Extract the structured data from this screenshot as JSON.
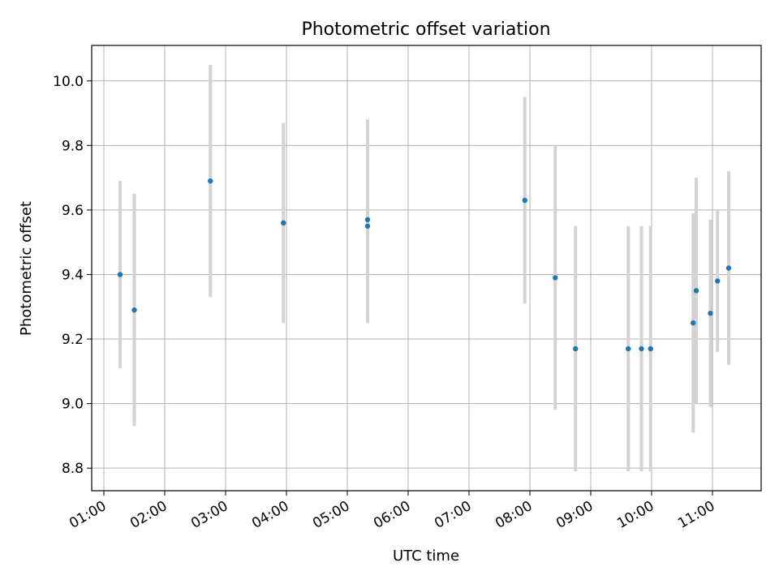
{
  "chart_data": {
    "type": "scatter",
    "title": "Photometric offset variation",
    "xlabel": "UTC time",
    "ylabel": "Photometric offset",
    "x_tick_labels": [
      "01:00",
      "02:00",
      "03:00",
      "04:00",
      "05:00",
      "06:00",
      "07:00",
      "08:00",
      "09:00",
      "10:00",
      "11:00"
    ],
    "y_tick_labels": [
      "8.8",
      "9.0",
      "9.2",
      "9.4",
      "9.6",
      "9.8",
      "10.0"
    ],
    "xlim": [
      "00:48",
      "11:48"
    ],
    "ylim": [
      8.73,
      10.11
    ],
    "grid": true,
    "colors": {
      "points": "#1f77b4",
      "error_bars": "#d3d3d3",
      "grid": "#b0b0b0"
    },
    "series": [
      {
        "points": [
          {
            "x": "01:16",
            "y": 9.4,
            "err": 0.29
          },
          {
            "x": "01:30",
            "y": 9.29,
            "err": 0.36
          },
          {
            "x": "02:45",
            "y": 9.69,
            "err": 0.36
          },
          {
            "x": "03:57",
            "y": 9.56,
            "err": 0.31
          },
          {
            "x": "05:20",
            "y": 9.57,
            "err": 0.31
          },
          {
            "x": "05:20",
            "y": 9.55,
            "err": 0.3
          },
          {
            "x": "07:55",
            "y": 9.63,
            "err": 0.32
          },
          {
            "x": "08:25",
            "y": 9.39,
            "err": 0.41
          },
          {
            "x": "08:45",
            "y": 9.17,
            "err": 0.38
          },
          {
            "x": "09:37",
            "y": 9.17,
            "err": 0.38
          },
          {
            "x": "09:50",
            "y": 9.17,
            "err": 0.38
          },
          {
            "x": "09:59",
            "y": 9.17,
            "err": 0.38
          },
          {
            "x": "10:41",
            "y": 9.25,
            "err": 0.34
          },
          {
            "x": "10:44",
            "y": 9.35,
            "err": 0.35
          },
          {
            "x": "10:58",
            "y": 9.28,
            "err": 0.29
          },
          {
            "x": "11:05",
            "y": 9.38,
            "err": 0.22
          },
          {
            "x": "11:16",
            "y": 9.42,
            "err": 0.3
          }
        ]
      }
    ]
  }
}
